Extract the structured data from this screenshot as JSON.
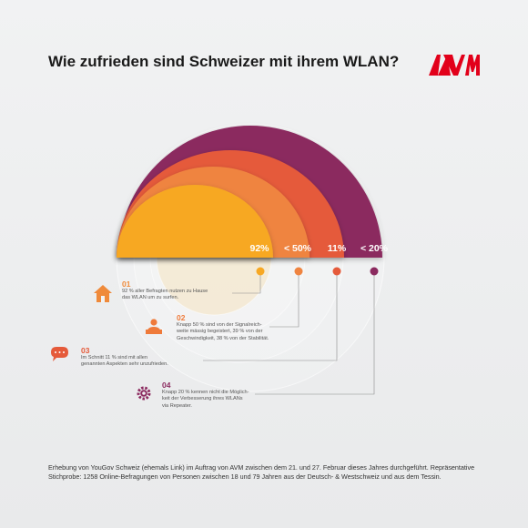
{
  "title": "Wie zufrieden sind Schweizer mit ihrem WLAN?",
  "brand": {
    "name": "AVM",
    "color": "#e2001a"
  },
  "chart_data": {
    "type": "nested-semicircle",
    "series": [
      {
        "value": "92%",
        "color": "#f7a823"
      },
      {
        "value": "< 50%",
        "color": "#ef8440"
      },
      {
        "value": "11%",
        "color": "#e55a3a"
      },
      {
        "value": "< 20%",
        "color": "#8b2a5f"
      }
    ]
  },
  "items": [
    {
      "number": "01",
      "icon": "house-icon",
      "color": "#ef8a3a",
      "lines": [
        "92 % aller Befragten nutzen zu Hause",
        "das WLAN um zu surfen."
      ]
    },
    {
      "number": "02",
      "icon": "person-icon",
      "color": "#ef7a3a",
      "lines": [
        "Knapp 50 % sind von der Signalreich-",
        "weite mässig begeistert, 39 % von der",
        "Geschwindigkeit, 38 % von der Stabilität."
      ]
    },
    {
      "number": "03",
      "icon": "chat-icon",
      "color": "#e55a3a",
      "lines": [
        "Im Schnitt 11 % sind mit allen",
        "genannten Aspekten sehr unzufrieden."
      ]
    },
    {
      "number": "04",
      "icon": "gear-icon",
      "color": "#8b2a5f",
      "lines": [
        "Knapp 20 % kennen nicht die Möglich-",
        "keit der Verbesserung ihres WLANs",
        "via Repeater."
      ]
    }
  ],
  "footer": {
    "line1": "Erhebung von YouGov Schweiz (ehemals Link) im Auftrag von AVM zwischen dem 21. und 27. Februar dieses Jahres durchgeführt. Repräsentative",
    "line2": "Stichprobe: 1258 Online-Befragungen von Personen zwischen 18 und 79 Jahren aus der Deutsch- & Westschweiz und aus dem Tessin."
  }
}
